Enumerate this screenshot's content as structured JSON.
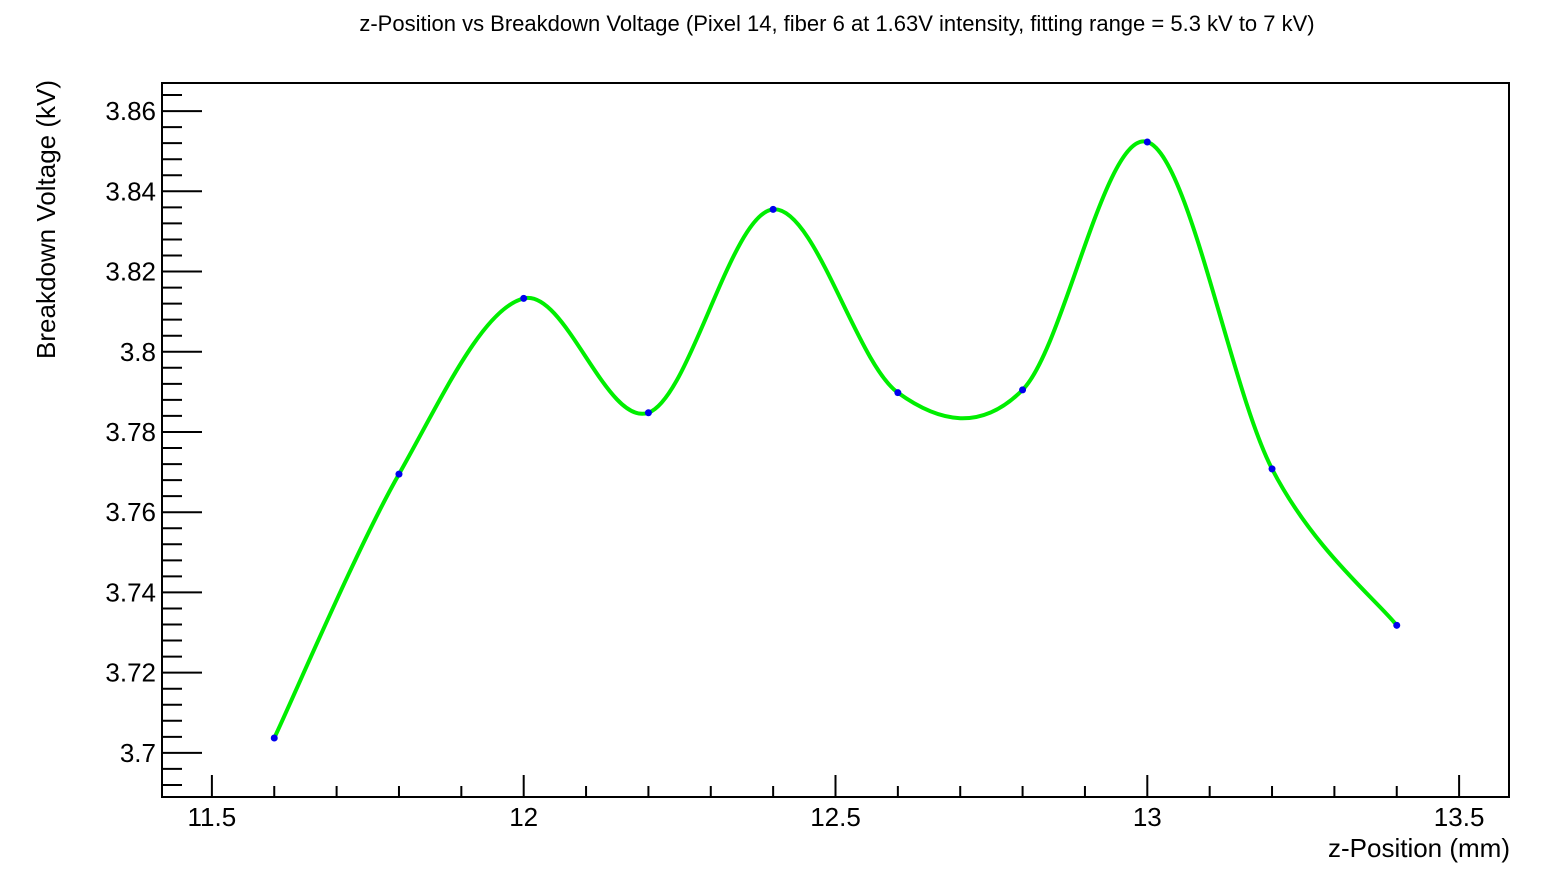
{
  "chart_data": {
    "type": "line",
    "title": "z-Position vs Breakdown Voltage (Pixel 14, fiber 6 at 1.63V intensity, fitting range = 5.3 kV to 7 kV)",
    "xlabel": "z-Position (mm)",
    "ylabel": "Breakdown Voltage (kV)",
    "xlim": [
      11.42,
      13.58
    ],
    "ylim": [
      3.689,
      3.867
    ],
    "x_ticks": [
      11.5,
      12,
      12.5,
      13,
      13.5
    ],
    "x_tick_labels": [
      "11.5",
      "12",
      "12.5",
      "13",
      "13.5"
    ],
    "y_ticks": [
      3.7,
      3.72,
      3.74,
      3.76,
      3.78,
      3.8,
      3.82,
      3.84,
      3.86
    ],
    "y_tick_labels": [
      "3.7",
      "3.72",
      "3.74",
      "3.76",
      "3.78",
      "3.8",
      "3.82",
      "3.84",
      "3.86"
    ],
    "grid": false,
    "colors": {
      "curve": "#00ee00",
      "points": "#0000ee",
      "axis": "#000000"
    },
    "series": [
      {
        "x": [
          11.6,
          11.8,
          12.0,
          12.2,
          12.4,
          12.6,
          12.8,
          13.0,
          13.2,
          13.4
        ],
        "values": [
          3.7037,
          3.7695,
          3.8133,
          3.7848,
          3.8355,
          3.7898,
          3.7905,
          3.8523,
          3.7708,
          3.7318
        ]
      }
    ]
  }
}
